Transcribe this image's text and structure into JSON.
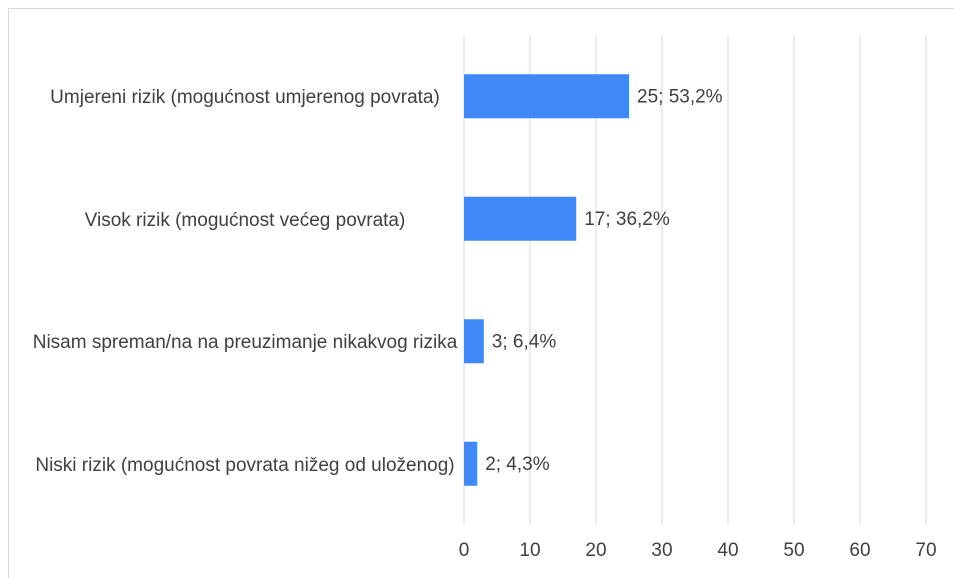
{
  "chart_data": {
    "type": "bar",
    "orientation": "horizontal",
    "categories": [
      "Umjereni rizik (mogućnost umjerenog povrata)",
      "Visok rizik (mogućnost većeg povrata)",
      "Nisam spreman/na na preuzimanje nikakvog rizika",
      "Niski rizik (mogućnost povrata nižeg od uloženog)"
    ],
    "values": [
      25,
      17,
      3,
      2
    ],
    "value_labels": [
      "25; 53,2%",
      "17; 36,2%",
      "3; 6,4%",
      "2; 4,3%"
    ],
    "color": "#3f88f5",
    "xlim": [
      0,
      70
    ],
    "xticks": [
      0,
      10,
      20,
      30,
      40,
      50,
      60,
      70
    ],
    "grid": true
  }
}
